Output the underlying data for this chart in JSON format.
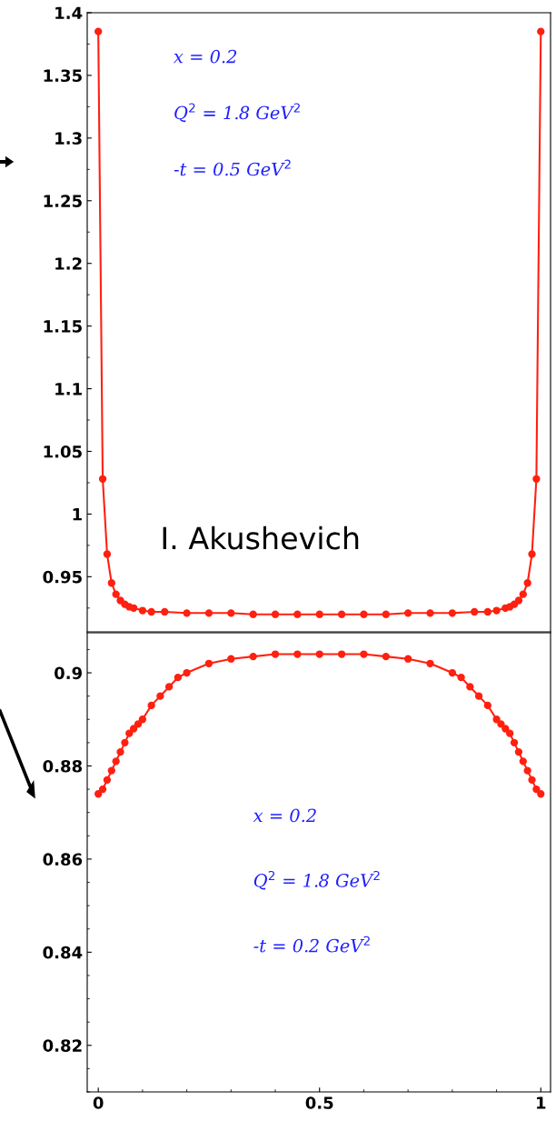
{
  "chart_data": [
    {
      "type": "line",
      "xlim": [
        -0.025,
        1.022
      ],
      "ylim": [
        0.906,
        1.4
      ],
      "yticks": [
        {
          "value": 0.95,
          "label": "0.95"
        },
        1,
        {
          "value": 1.05,
          "label": "1.05"
        },
        1.1,
        1.15,
        1.2,
        1.25,
        1.3,
        1.35,
        1.4
      ],
      "tick_labels": "y",
      "marker": "circle",
      "line_style": "solid",
      "grid": false,
      "legend": false,
      "annotations": [
        "x = 0.2",
        "Q$^{2}$ = 1.8 GeV$^{2}$",
        "-t = 0.5 GeV$^{2}$",
        "I. Akushevich"
      ],
      "series": [
        {
          "color": "#ff2010",
          "x": [
            0,
            0.01,
            0.02,
            0.03,
            0.04,
            0.05,
            0.06,
            0.07,
            0.08,
            0.1,
            0.12,
            0.15,
            0.2,
            0.25,
            0.3,
            0.35,
            0.4,
            0.45,
            0.5,
            0.55,
            0.6,
            0.65,
            0.7,
            0.75,
            0.8,
            0.85,
            0.88,
            0.9,
            0.92,
            0.93,
            0.94,
            0.95,
            0.96,
            0.97,
            0.98,
            0.99,
            1
          ],
          "values": [
            1.385,
            1.028,
            0.968,
            0.945,
            0.936,
            0.931,
            0.928,
            0.926,
            0.925,
            0.923,
            0.922,
            0.922,
            0.921,
            0.921,
            0.921,
            0.92,
            0.92,
            0.92,
            0.92,
            0.92,
            0.92,
            0.92,
            0.921,
            0.921,
            0.921,
            0.922,
            0.922,
            0.923,
            0.925,
            0.926,
            0.928,
            0.931,
            0.936,
            0.945,
            0.968,
            1.028,
            1.385
          ]
        }
      ]
    },
    {
      "type": "line",
      "xlim": [
        -0.025,
        1.022
      ],
      "ylim": [
        0.81,
        0.9086
      ],
      "xticks": [
        0,
        0.5,
        1
      ],
      "yticks": [
        0.82,
        0.84,
        0.86,
        0.88,
        0.9
      ],
      "marker": "circle",
      "line_style": "solid",
      "grid": false,
      "legend": false,
      "annotations": [
        "x = 0.2",
        "Q$^{2}$ = 1.8 GeV$^{2}$",
        "-t = 0.2 GeV$^{2}$"
      ],
      "series": [
        {
          "color": "#ff2010",
          "x": [
            0,
            0.01,
            0.02,
            0.03,
            0.04,
            0.05,
            0.06,
            0.07,
            0.08,
            0.09,
            0.1,
            0.12,
            0.14,
            0.16,
            0.18,
            0.2,
            0.25,
            0.3,
            0.35,
            0.4,
            0.45,
            0.5,
            0.55,
            0.6,
            0.65,
            0.7,
            0.75,
            0.8,
            0.82,
            0.84,
            0.86,
            0.88,
            0.9,
            0.91,
            0.92,
            0.93,
            0.94,
            0.95,
            0.96,
            0.97,
            0.98,
            0.99,
            1
          ],
          "values": [
            0.874,
            0.875,
            0.877,
            0.879,
            0.881,
            0.883,
            0.885,
            0.887,
            0.888,
            0.889,
            0.89,
            0.893,
            0.895,
            0.897,
            0.899,
            0.9,
            0.902,
            0.903,
            0.9035,
            0.904,
            0.904,
            0.904,
            0.904,
            0.904,
            0.9035,
            0.903,
            0.902,
            0.9,
            0.899,
            0.897,
            0.895,
            0.893,
            0.89,
            0.889,
            0.888,
            0.887,
            0.885,
            0.883,
            0.881,
            0.879,
            0.877,
            0.875,
            0.874
          ]
        }
      ]
    }
  ]
}
